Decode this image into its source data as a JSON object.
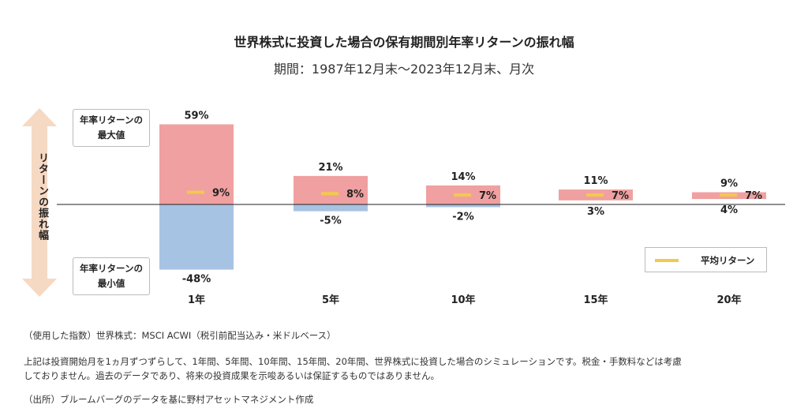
{
  "title": "世界株式に投資した場合の保有期間別年率リターンの振れ幅",
  "subtitle": "期間：1987年12月末〜2023年12月末、月次",
  "side_label": "リターンの振れ幅",
  "max_box": {
    "line1": "年率リターンの",
    "line2": "最大値"
  },
  "min_box": {
    "line1": "年率リターンの",
    "line2": "最小値"
  },
  "legend_label": "平均リターン",
  "notes": {
    "index": "（使用した指数）世界株式：MSCI ACWI（税引前配当込み・米ドルベース）",
    "desc_line1": "上記は投資開始月を1ヵ月ずつずらして、1年間、5年間、10年間、15年間、20年間、世界株式に投資した場合のシミュレーションです。税金・手数料などは考慮",
    "desc_line2": "しておりません。過去のデータであり、将来の投資成果を示唆あるいは保証するものではありません。",
    "source": "（出所）ブルームバーグのデータを基に野村アセットマネジメント作成"
  },
  "colors": {
    "positive": "#f0a0a0",
    "negative": "#a7c3e3",
    "average": "#f2c94c",
    "arrow": "#f6d9c3"
  },
  "chart_data": {
    "type": "bar",
    "categories": [
      "1年",
      "5年",
      "10年",
      "15年",
      "20年"
    ],
    "series": [
      {
        "name": "最大値",
        "values": [
          59,
          21,
          14,
          11,
          9
        ]
      },
      {
        "name": "最小値",
        "values": [
          -48,
          -5,
          -2,
          3,
          4
        ]
      },
      {
        "name": "平均リターン",
        "values": [
          9,
          8,
          7,
          7,
          7
        ]
      }
    ],
    "unit": "%",
    "ylim": [
      -55,
      65
    ]
  }
}
